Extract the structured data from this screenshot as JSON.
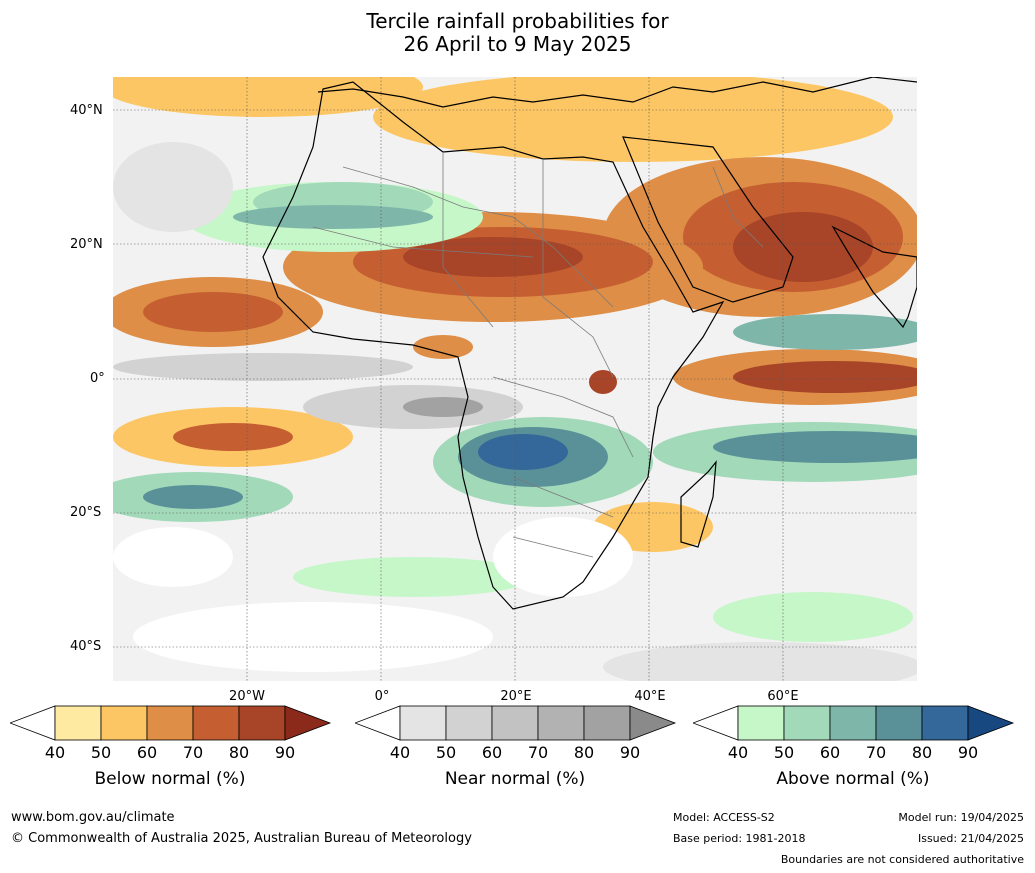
{
  "title": {
    "line1": "Tercile rainfall probabilities for",
    "line2": "26 April to 9 May 2025"
  },
  "map": {
    "lat_labels": [
      "40°N",
      "20°N",
      "0°",
      "20°S",
      "40°S"
    ],
    "lon_labels": [
      "20°W",
      "0°",
      "20°E",
      "40°E",
      "60°E"
    ]
  },
  "legend": {
    "below": {
      "label": "Below normal (%)",
      "ticks": [
        "40",
        "50",
        "60",
        "70",
        "80",
        "90"
      ],
      "colors": [
        "#ffffff",
        "#feeaa0",
        "#fdc664",
        "#de8e46",
        "#c55f32",
        "#a84528",
        "#8b2a1b"
      ]
    },
    "near": {
      "label": "Near normal (%)",
      "ticks": [
        "40",
        "50",
        "60",
        "70",
        "80",
        "90"
      ],
      "colors": [
        "#ffffff",
        "#e4e4e4",
        "#d2d2d2",
        "#c2c2c2",
        "#b2b2b2",
        "#a2a2a2",
        "#8a8a8a"
      ]
    },
    "above": {
      "label": "Above normal (%)",
      "ticks": [
        "40",
        "50",
        "60",
        "70",
        "80",
        "90"
      ],
      "colors": [
        "#ffffff",
        "#c6f7c9",
        "#a1d9b9",
        "#7fb6aa",
        "#5a9199",
        "#34689a",
        "#17487f"
      ]
    }
  },
  "footer": {
    "url": "www.bom.gov.au/climate",
    "copyright": "© Commonwealth of Australia 2025, Australian Bureau of Meteorology",
    "model": "Model: ACCESS-S2",
    "base_period": "Base period: 1981-2018",
    "model_run": "Model run: 19/04/2025",
    "issued": "Issued: 21/04/2025",
    "disclaimer": "Boundaries are not considered authoritative"
  }
}
